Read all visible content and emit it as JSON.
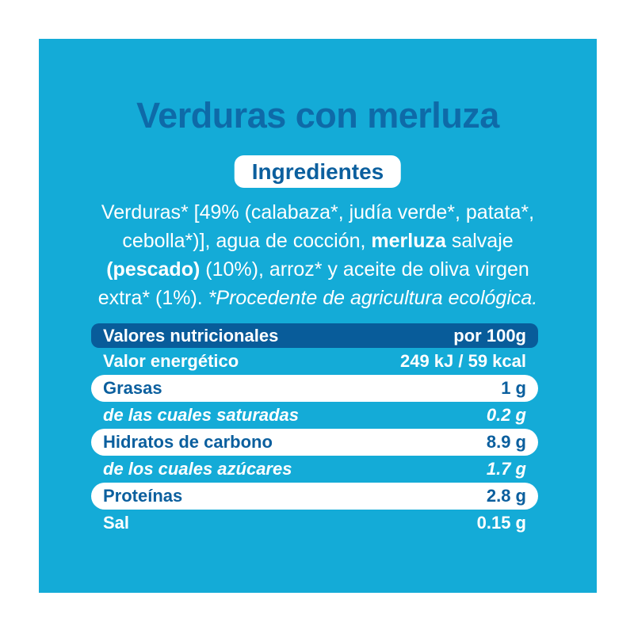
{
  "colors": {
    "card_bg": "#14abd7",
    "band": "#085c9a",
    "dark_title": "#0e6aa8",
    "dark_text": "#0b5f9e"
  },
  "title": "Verduras con merluza",
  "ingredients": {
    "badge_label": "Ingredientes",
    "full_text": "Verduras* [49% (calabaza*, judía verde*, patata*, cebolla*)], agua de cocción, merluza salvaje (pescado) (10%), arroz* y aceite de oliva virgen extra* (1%). *Procedente de agricultura ecológica.",
    "lines": [
      [
        {
          "text": "Verduras* [49% (calabaza*, judía verde*, patata*,",
          "style": "regular"
        }
      ],
      [
        {
          "text": "cebolla*)], agua de cocción, ",
          "style": "regular"
        },
        {
          "text": "merluza",
          "style": "bold"
        },
        {
          "text": " salvaje",
          "style": "regular"
        }
      ],
      [
        {
          "text": "(pescado)",
          "style": "bold"
        },
        {
          "text": " (10%), arroz* y aceite de oliva virgen",
          "style": "regular"
        }
      ],
      [
        {
          "text": "extra* (1%). ",
          "style": "regular"
        },
        {
          "text": "*Procedente de agricultura ecológica.",
          "style": "italic"
        }
      ]
    ]
  },
  "nutrition_table": {
    "header": {
      "label": "Valores nutricionales",
      "value": "por 100g"
    },
    "rows": [
      {
        "label": "Valor energético",
        "value": "249 kJ / 59 kcal"
      },
      {
        "label": "Grasas",
        "value": "1 g"
      },
      {
        "label": "de las cuales saturadas",
        "value": "0.2 g"
      },
      {
        "label": "Hidratos de carbono",
        "value": "8.9 g"
      },
      {
        "label": "de los cuales azúcares",
        "value": "1.7 g"
      },
      {
        "label": "Proteínas",
        "value": "2.8 g"
      },
      {
        "label": "Sal",
        "value": "0.15 g"
      }
    ]
  }
}
